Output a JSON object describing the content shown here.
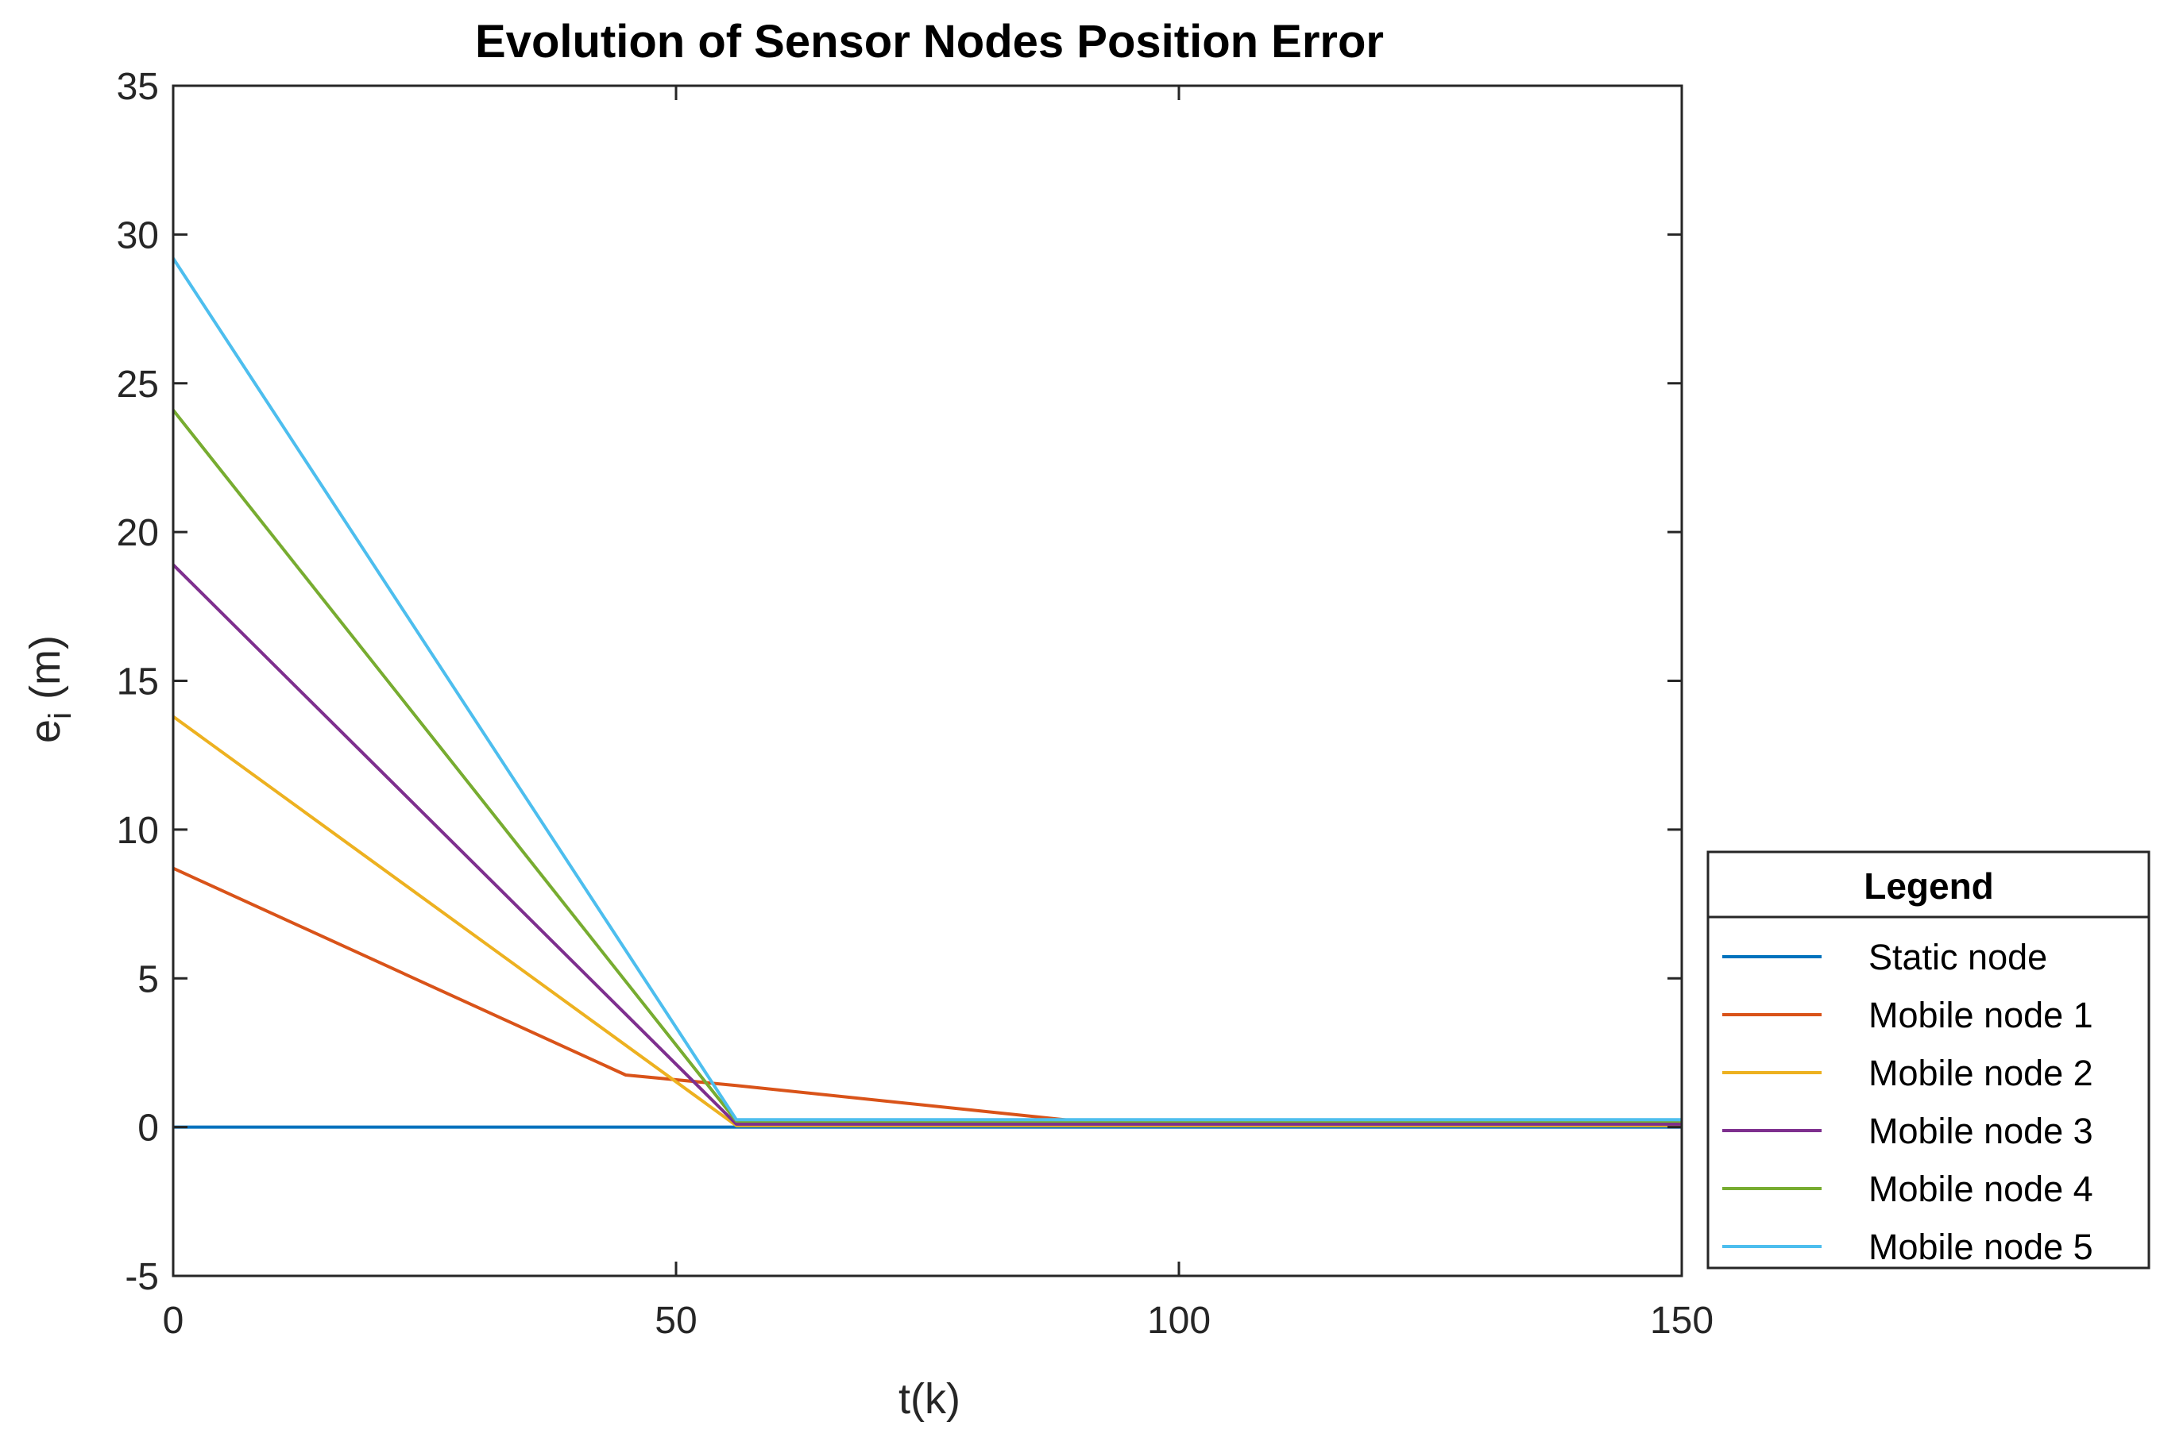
{
  "chart_data": {
    "type": "line",
    "title": "Evolution of Sensor Nodes Position Error",
    "xlabel": "t(k)",
    "ylabel": {
      "base": "e",
      "subscript": "i",
      "unit": "(m)"
    },
    "xlim": [
      0,
      150
    ],
    "ylim": [
      -5,
      35
    ],
    "xticks": [
      0,
      50,
      100,
      150
    ],
    "yticks": [
      -5,
      0,
      5,
      10,
      15,
      20,
      25,
      30,
      35
    ],
    "grid": false,
    "legend": {
      "title": "Legend",
      "position": "right"
    },
    "series": [
      {
        "name": "Static node",
        "color": "#0072BD",
        "points": [
          [
            0,
            0
          ],
          [
            150,
            0
          ]
        ]
      },
      {
        "name": "Mobile node 1",
        "color": "#D95319",
        "points": [
          [
            0,
            8.7
          ],
          [
            45,
            1.75
          ],
          [
            56,
            1.4
          ],
          [
            90,
            0.2
          ],
          [
            150,
            0.2
          ]
        ]
      },
      {
        "name": "Mobile node 2",
        "color": "#EDB120",
        "points": [
          [
            0,
            13.8
          ],
          [
            56,
            0.05
          ],
          [
            150,
            0.05
          ]
        ]
      },
      {
        "name": "Mobile node 3",
        "color": "#7E2F8E",
        "points": [
          [
            0,
            18.9
          ],
          [
            56,
            0.1
          ],
          [
            150,
            0.1
          ]
        ]
      },
      {
        "name": "Mobile node 4",
        "color": "#77AC30",
        "points": [
          [
            0,
            24.1
          ],
          [
            56,
            0.2
          ],
          [
            150,
            0.2
          ]
        ]
      },
      {
        "name": "Mobile node 5",
        "color": "#4DBEEE",
        "points": [
          [
            0,
            29.2
          ],
          [
            56,
            0.25
          ],
          [
            150,
            0.25
          ]
        ]
      }
    ]
  }
}
